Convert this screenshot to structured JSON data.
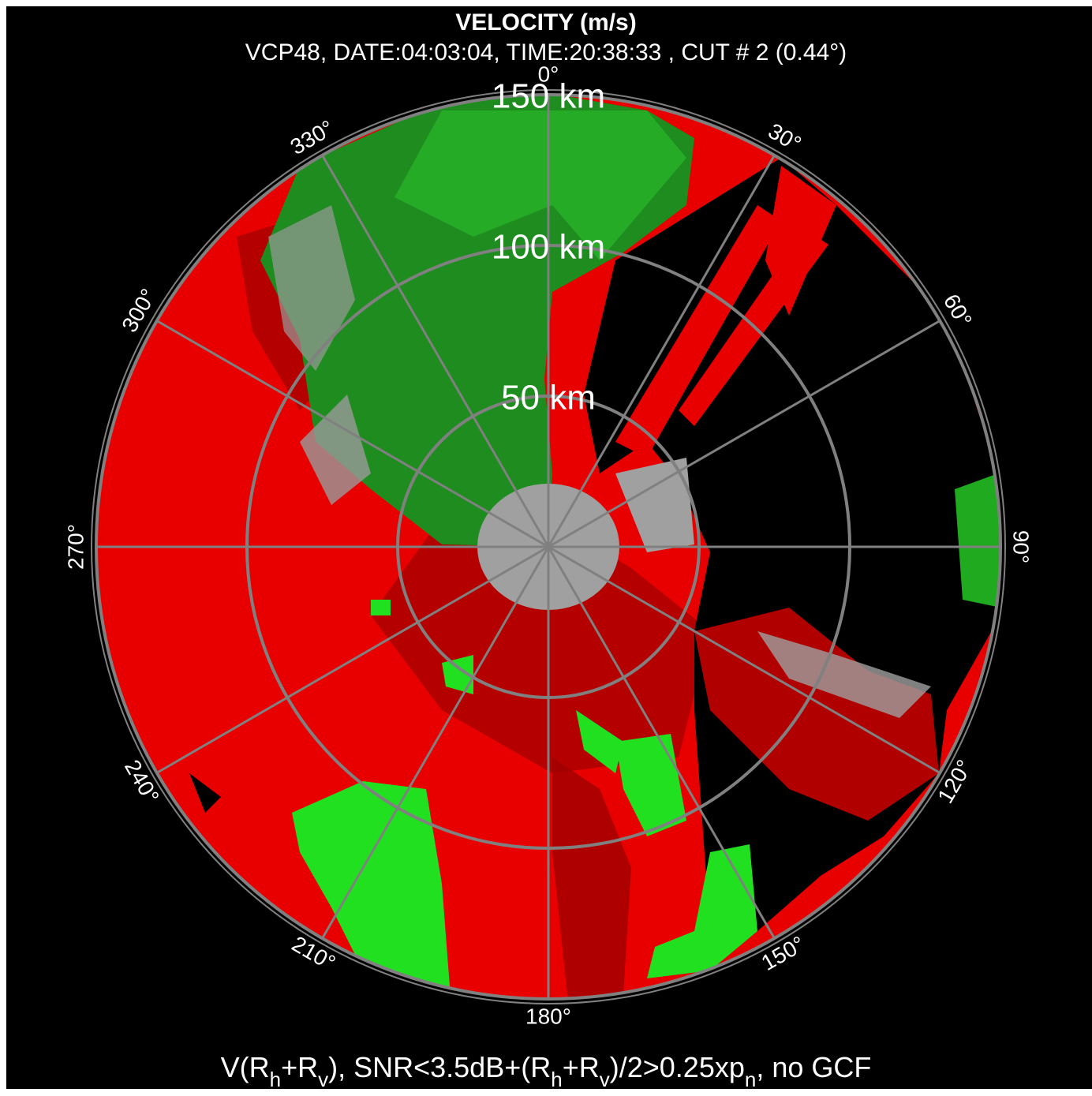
{
  "header": {
    "title": "VELOCITY (m/s)",
    "subtitle": "VCP48, DATE:04:03:04, TIME:20:38:33 , CUT # 2 (0.44°)"
  },
  "range_rings": [
    "50 km",
    "100 km",
    "150 km"
  ],
  "azimuth_labels": [
    "0°",
    "30°",
    "60°",
    "90°",
    "120°",
    "150°",
    "180°",
    "210°",
    "240°",
    "270°",
    "300°",
    "330°"
  ],
  "caption": [
    "V(R",
    "h",
    "+R",
    "v",
    "), SNR<3.5dB+(R",
    "h",
    "+R",
    "v",
    ")/2>0.25xp",
    "n",
    ", no GCF"
  ]
}
